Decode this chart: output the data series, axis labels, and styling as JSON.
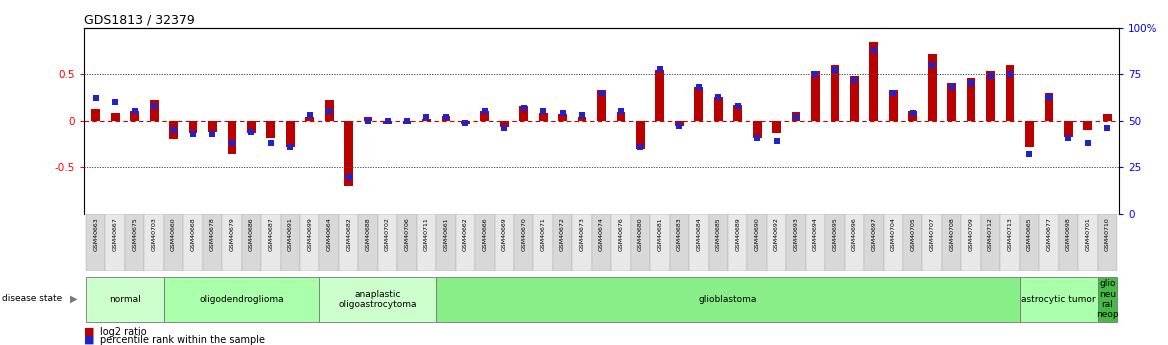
{
  "title": "GDS1813 / 32379",
  "samples": [
    "GSM40663",
    "GSM40667",
    "GSM40675",
    "GSM40703",
    "GSM40660",
    "GSM40668",
    "GSM40678",
    "GSM40679",
    "GSM40686",
    "GSM40687",
    "GSM40691",
    "GSM40699",
    "GSM40664",
    "GSM40682",
    "GSM40688",
    "GSM40702",
    "GSM40706",
    "GSM40711",
    "GSM40661",
    "GSM40662",
    "GSM40666",
    "GSM40669",
    "GSM40670",
    "GSM40671",
    "GSM40672",
    "GSM40673",
    "GSM40674",
    "GSM40676",
    "GSM40680",
    "GSM40681",
    "GSM40683",
    "GSM40684",
    "GSM40685",
    "GSM40689",
    "GSM40690",
    "GSM40692",
    "GSM40693",
    "GSM40694",
    "GSM40695",
    "GSM40696",
    "GSM40697",
    "GSM40704",
    "GSM40705",
    "GSM40707",
    "GSM40708",
    "GSM40709",
    "GSM40712",
    "GSM40713",
    "GSM40665",
    "GSM40677",
    "GSM40698",
    "GSM40701",
    "GSM40710"
  ],
  "log2_ratio": [
    0.13,
    0.08,
    0.1,
    0.22,
    -0.2,
    -0.13,
    -0.12,
    -0.36,
    -0.13,
    -0.18,
    -0.28,
    0.04,
    0.22,
    -0.7,
    0.04,
    -0.04,
    -0.04,
    0.02,
    0.05,
    -0.04,
    0.1,
    -0.07,
    0.16,
    0.08,
    0.07,
    0.04,
    0.33,
    0.09,
    -0.3,
    0.55,
    -0.06,
    0.36,
    0.26,
    0.17,
    -0.18,
    -0.13,
    0.09,
    0.53,
    0.6,
    0.48,
    0.85,
    0.33,
    0.11,
    0.72,
    0.4,
    0.46,
    0.53,
    0.6,
    -0.28,
    0.3,
    -0.17,
    -0.1,
    0.07
  ],
  "percentile": [
    62,
    60,
    55,
    58,
    45,
    43,
    43,
    38,
    44,
    38,
    36,
    53,
    55,
    20,
    50,
    50,
    50,
    52,
    52,
    49,
    55,
    46,
    57,
    55,
    54,
    53,
    65,
    55,
    36,
    78,
    47,
    68,
    63,
    58,
    41,
    39,
    52,
    75,
    77,
    72,
    88,
    65,
    54,
    80,
    68,
    70,
    74,
    75,
    32,
    63,
    41,
    38,
    46
  ],
  "disease_groups": [
    {
      "label": "normal",
      "start": 0,
      "end": 3,
      "color": "#ccffcc"
    },
    {
      "label": "oligodendroglioma",
      "start": 4,
      "end": 11,
      "color": "#aaffaa"
    },
    {
      "label": "anaplastic\noligoastrocytoma",
      "start": 12,
      "end": 17,
      "color": "#ccffcc"
    },
    {
      "label": "glioblastoma",
      "start": 18,
      "end": 47,
      "color": "#88ee88"
    },
    {
      "label": "astrocytic tumor",
      "start": 48,
      "end": 51,
      "color": "#aaffaa"
    },
    {
      "label": "glio\nneu\nral\nneop",
      "start": 52,
      "end": 52,
      "color": "#44bb44"
    }
  ],
  "ylim_left": [
    -1.0,
    1.0
  ],
  "ylim_right": [
    0,
    100
  ],
  "yticks_left": [
    -1.0,
    -0.5,
    0.0,
    0.5,
    1.0
  ],
  "yticks_right": [
    0,
    25,
    50,
    75,
    100
  ],
  "bar_color_red": "#bb0000",
  "bar_color_blue": "#2222cc",
  "zero_line_color": "#cc0000",
  "dotted_line_color": "#555555",
  "bg_color": "#ffffff"
}
